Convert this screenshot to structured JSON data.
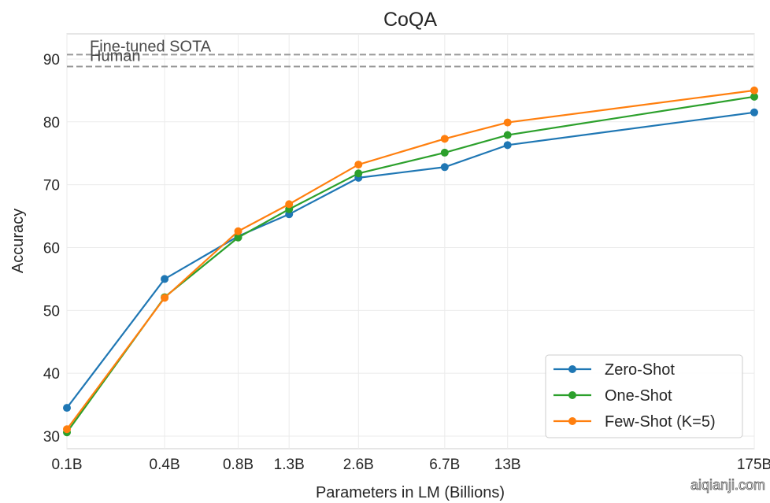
{
  "chart_data": {
    "type": "line",
    "title": "CoQA",
    "xlabel": "Parameters in LM (Billions)",
    "ylabel": "Accuracy",
    "x_scale": "log",
    "categories": [
      "0.1B",
      "0.4B",
      "0.8B",
      "1.3B",
      "2.6B",
      "6.7B",
      "13B",
      "175B"
    ],
    "x": [
      0.125,
      0.35,
      0.76,
      1.3,
      2.7,
      6.7,
      13,
      175
    ],
    "ylim": [
      28,
      94
    ],
    "yticks": [
      30,
      40,
      50,
      60,
      70,
      80,
      90
    ],
    "grid": true,
    "legend_position": "bottom-right",
    "series": [
      {
        "name": "Zero-Shot",
        "color": "#1f77b4",
        "values": [
          34.5,
          55.0,
          61.8,
          65.3,
          71.1,
          72.8,
          76.3,
          81.5
        ]
      },
      {
        "name": "One-Shot",
        "color": "#2ca02c",
        "values": [
          30.6,
          52.1,
          61.6,
          66.1,
          71.8,
          75.1,
          77.9,
          84.0
        ]
      },
      {
        "name": "Few-Shot (K=5)",
        "color": "#ff7f0e",
        "values": [
          31.1,
          52.0,
          62.6,
          66.9,
          73.2,
          77.3,
          79.9,
          85.0
        ]
      }
    ],
    "reference_lines": [
      {
        "label": "Fine-tuned SOTA",
        "value": 90.7,
        "color": "#999999"
      },
      {
        "label": "Human",
        "value": 88.8,
        "color": "#999999"
      }
    ]
  },
  "watermark": "aiqianji.com"
}
